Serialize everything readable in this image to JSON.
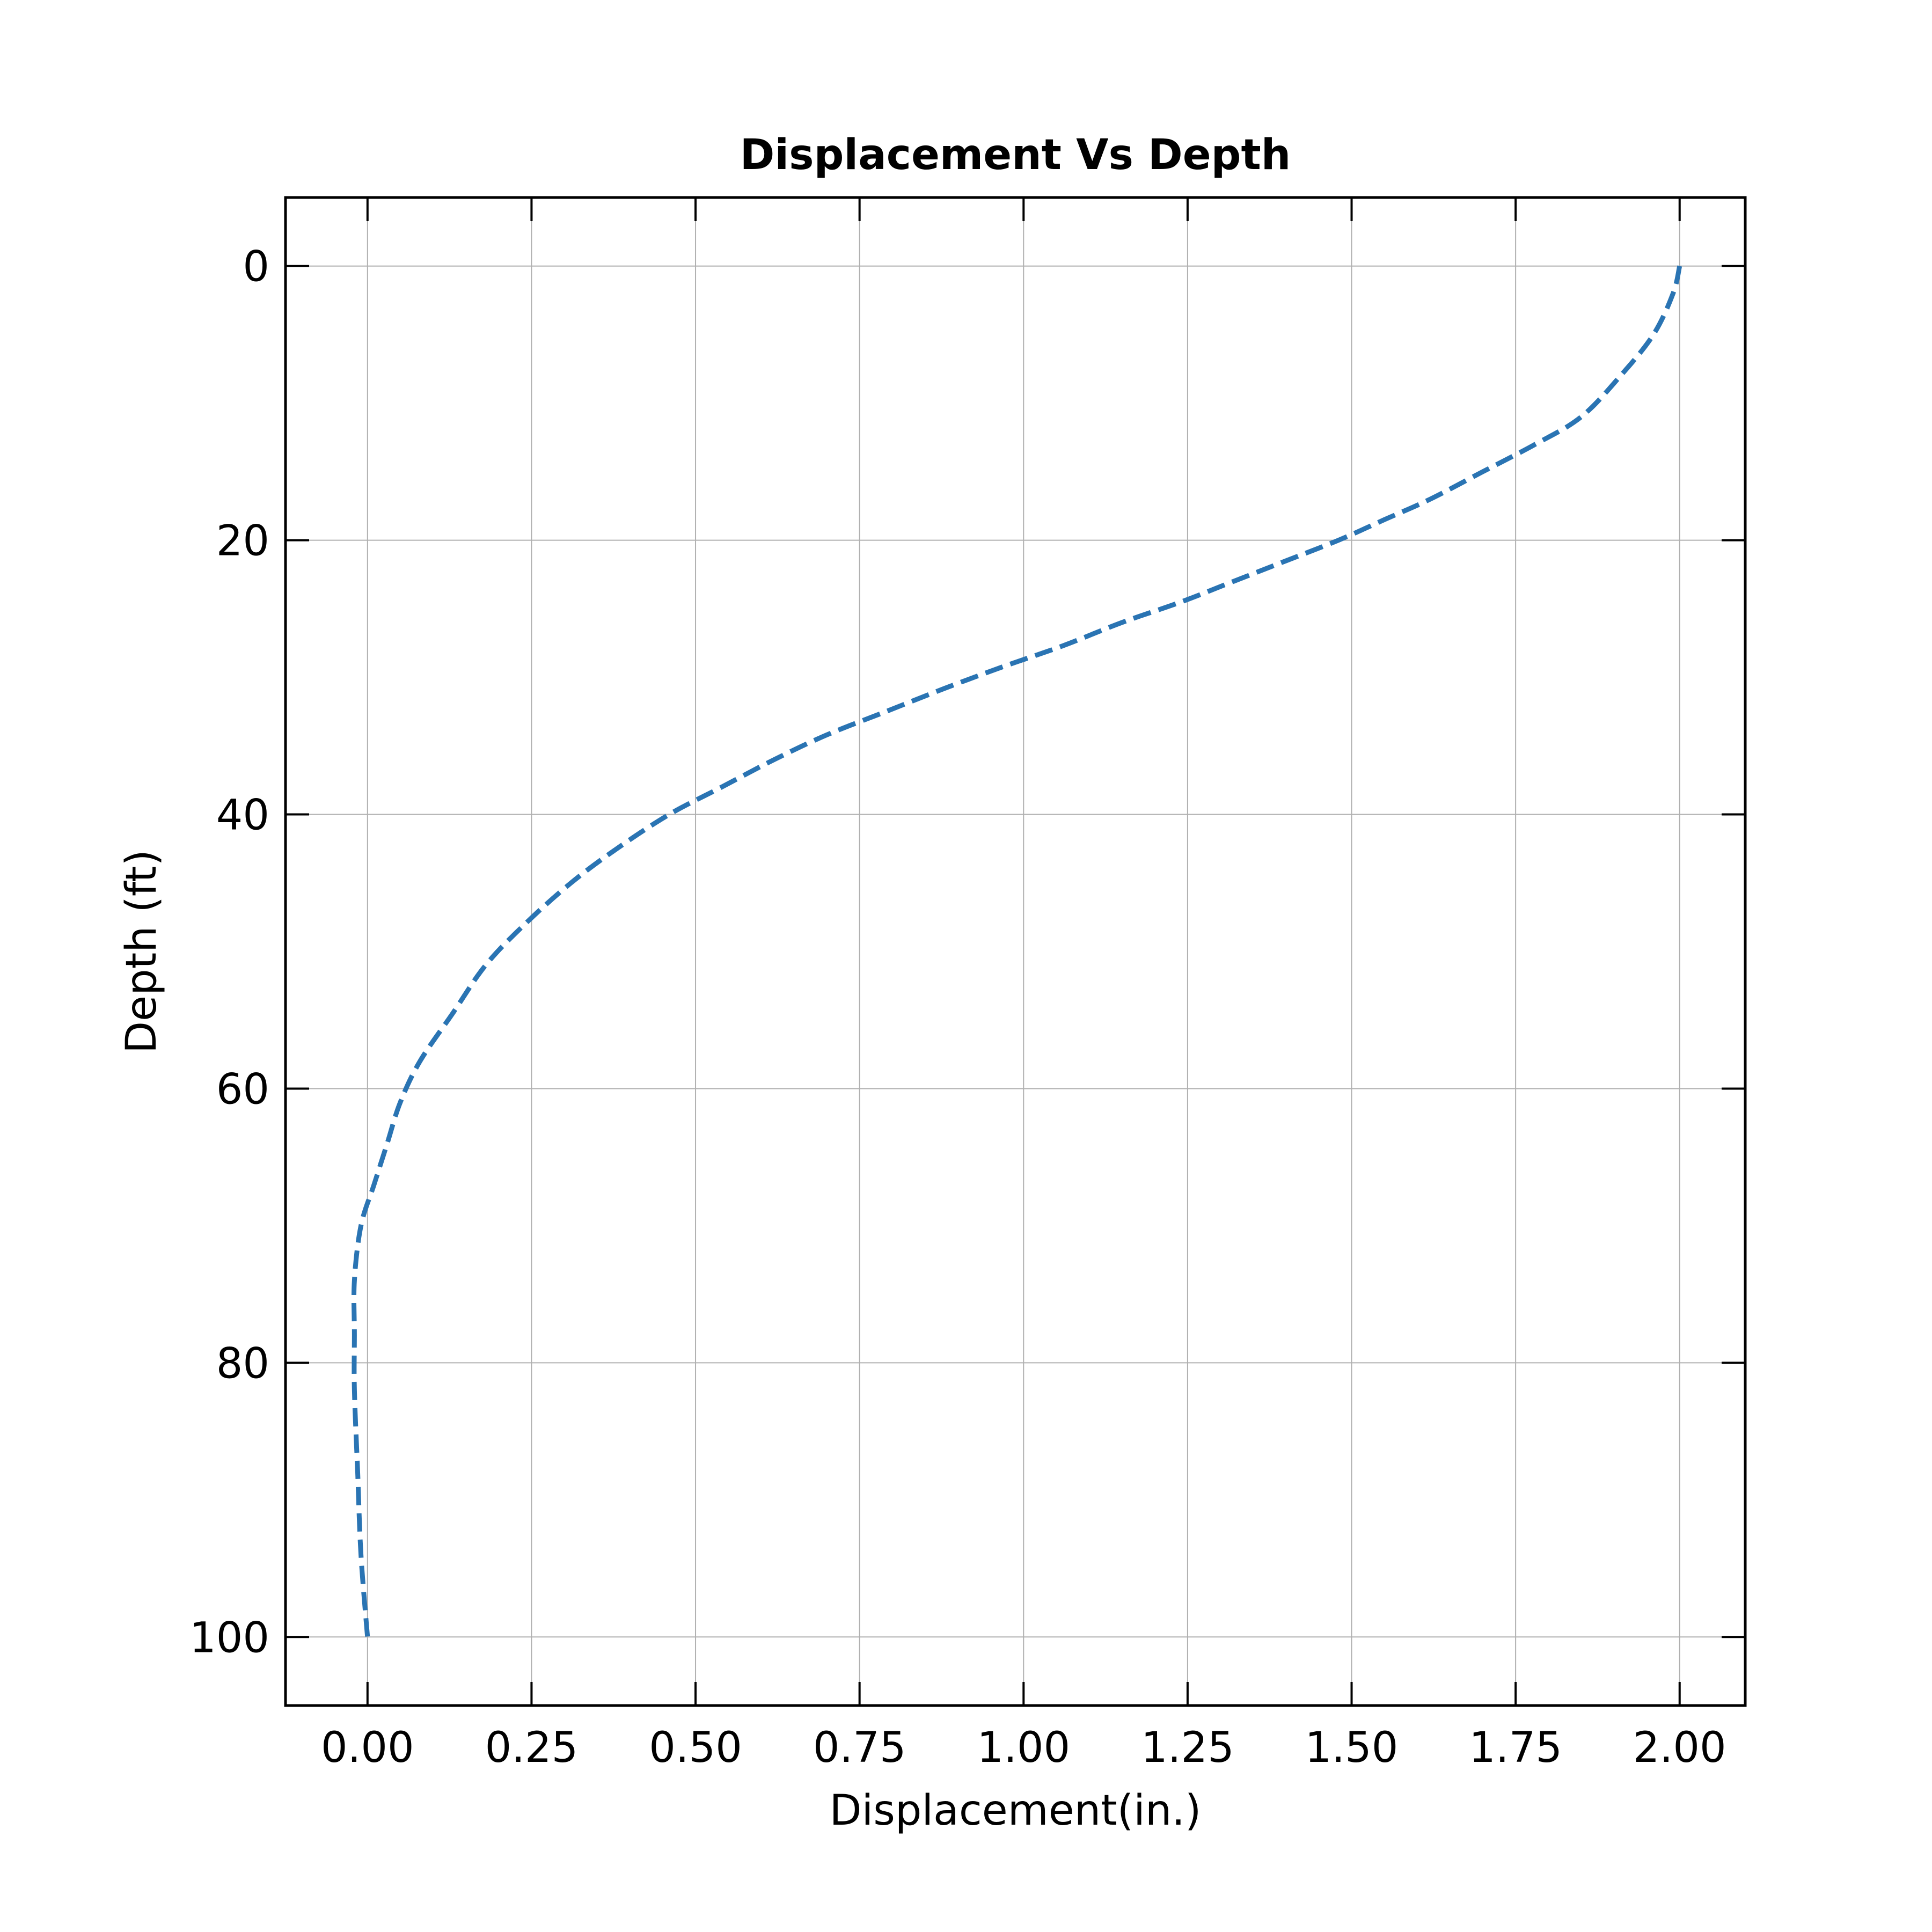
{
  "chart_data": {
    "type": "line",
    "title": "Displacement Vs Depth",
    "xlabel": "Displacement(in.)",
    "ylabel": "Depth (ft)",
    "xlim": [
      -0.125,
      2.1
    ],
    "ylim": [
      105,
      -5
    ],
    "y_inverted": true,
    "x_ticks": [
      0.0,
      0.25,
      0.5,
      0.75,
      1.0,
      1.25,
      1.5,
      1.75,
      2.0
    ],
    "x_tick_labels": [
      "0.00",
      "0.25",
      "0.50",
      "0.75",
      "1.00",
      "1.25",
      "1.50",
      "1.75",
      "2.00"
    ],
    "y_ticks": [
      0,
      20,
      40,
      60,
      80,
      100
    ],
    "y_tick_labels": [
      "0",
      "20",
      "40",
      "60",
      "80",
      "100"
    ],
    "grid": true,
    "legend": false,
    "line_style": "dashed",
    "color": "#2a74b3",
    "series": [
      {
        "x": [
          2.0,
          1.99,
          1.96,
          1.91,
          1.85,
          1.78,
          1.7,
          1.62,
          1.55,
          1.48,
          1.4,
          1.32,
          1.24,
          1.15,
          1.06,
          0.97,
          0.88,
          0.79,
          0.7,
          0.62,
          0.54,
          0.46,
          0.38,
          0.31,
          0.24,
          0.18,
          0.13,
          0.08,
          0.05,
          0.03,
          0.01,
          -0.01,
          -0.02,
          -0.02,
          -0.02,
          -0.015,
          -0.01,
          0.0
        ],
        "y": [
          0,
          2,
          5,
          8,
          11,
          13,
          15,
          17,
          18.5,
          20,
          21.5,
          23,
          24.5,
          26,
          27.7,
          29.2,
          30.8,
          32.5,
          34.2,
          36,
          38,
          40,
          42.5,
          45,
          48,
          51,
          54.5,
          58,
          61,
          64,
          67,
          70,
          74,
          78,
          82,
          88,
          94,
          100
        ]
      }
    ]
  }
}
